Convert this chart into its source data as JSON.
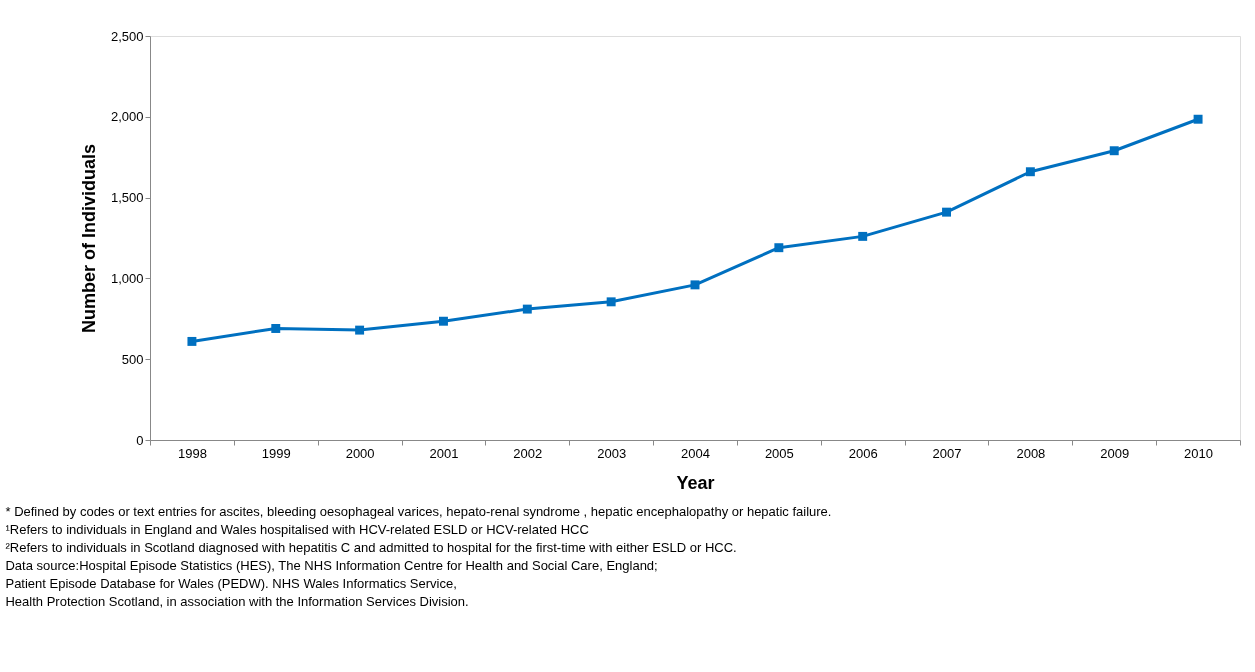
{
  "chart_data": {
    "type": "line",
    "xlabel": "Year",
    "ylabel": "Number of Individuals",
    "categories": [
      "1998",
      "1999",
      "2000",
      "2001",
      "2002",
      "2003",
      "2004",
      "2005",
      "2006",
      "2007",
      "2008",
      "2009",
      "2010"
    ],
    "series": [
      {
        "color": "#0070c0",
        "values": [
          610,
          690,
          680,
          735,
          810,
          855,
          960,
          1190,
          1260,
          1410,
          1660,
          1790,
          1985
        ]
      }
    ],
    "ylim": [
      0,
      2500
    ],
    "yticks": [
      {
        "value": 0,
        "label": "0"
      },
      {
        "value": 500,
        "label": "500"
      },
      {
        "value": 1000,
        "label": "1,000"
      },
      {
        "value": 1500,
        "label": "1,500"
      },
      {
        "value": 2000,
        "label": "2,000"
      },
      {
        "value": 2500,
        "label": "2,500"
      }
    ],
    "grid": false,
    "marker": "square",
    "line_style": "solid",
    "annotations": [
      "* Defined by codes or text entries for ascites, bleeding oesophageal varices, hepato-renal syndrome , hepatic encephalopathy or hepatic failure.",
      "¹Refers to individuals in England and Wales hospitalised with HCV-related ESLD or HCV-related HCC",
      "²Refers to individuals in Scotland diagnosed with hepatitis C and admitted to hospital for the first-time with either ESLD or HCC.",
      "Data source:Hospital Episode Statistics (HES), The NHS Information Centre for Health and Social Care, England;",
      "Patient Episode Database for Wales (PEDW).  NHS Wales Informatics Service,",
      "Health Protection Scotland, in association with the Information Services Division."
    ]
  }
}
